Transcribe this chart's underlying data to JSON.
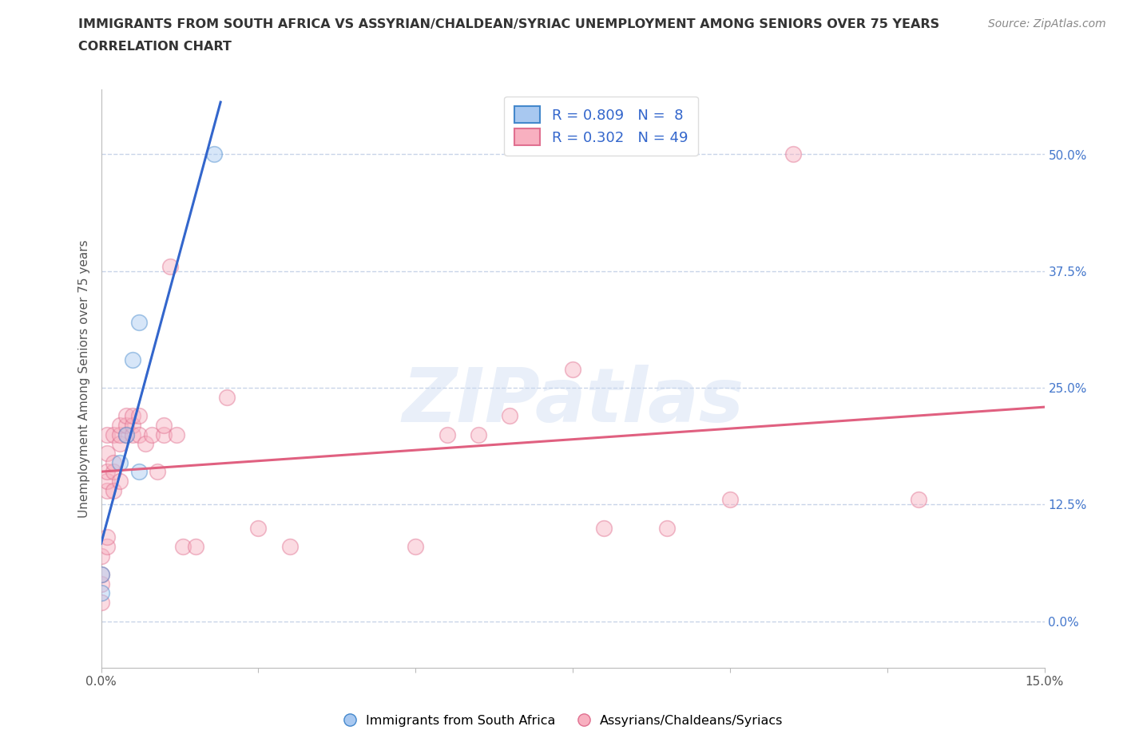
{
  "title": "IMMIGRANTS FROM SOUTH AFRICA VS ASSYRIAN/CHALDEAN/SYRIAC UNEMPLOYMENT AMONG SENIORS OVER 75 YEARS",
  "subtitle": "CORRELATION CHART",
  "source": "Source: ZipAtlas.com",
  "ylabel": "Unemployment Among Seniors over 75 years",
  "xlim": [
    0.0,
    0.15
  ],
  "ylim": [
    -0.05,
    0.57
  ],
  "xticks": [
    0.0,
    0.025,
    0.05,
    0.075,
    0.1,
    0.125,
    0.15
  ],
  "xtick_labels": [
    "0.0%",
    "",
    "",
    "",
    "",
    "",
    "15.0%"
  ],
  "ytick_values": [
    0.0,
    0.125,
    0.25,
    0.375,
    0.5
  ],
  "ytick_labels": [
    "0.0%",
    "12.5%",
    "25.0%",
    "37.5%",
    "50.0%"
  ],
  "watermark_text": "ZIPatlas",
  "legend_blue_R": "0.809",
  "legend_blue_N": " 8",
  "legend_pink_R": "0.302",
  "legend_pink_N": "49",
  "blue_fill": "#a8c8f0",
  "pink_fill": "#f8b0c0",
  "blue_edge": "#4488cc",
  "pink_edge": "#e07090",
  "blue_line": "#3366cc",
  "pink_line": "#e06080",
  "grid_color": "#c8d4e8",
  "blue_scatter": [
    [
      0.0,
      0.03
    ],
    [
      0.0,
      0.05
    ],
    [
      0.003,
      0.17
    ],
    [
      0.004,
      0.2
    ],
    [
      0.005,
      0.28
    ],
    [
      0.006,
      0.32
    ],
    [
      0.006,
      0.16
    ],
    [
      0.018,
      0.5
    ]
  ],
  "pink_scatter": [
    [
      0.0,
      0.02
    ],
    [
      0.0,
      0.04
    ],
    [
      0.0,
      0.05
    ],
    [
      0.0,
      0.07
    ],
    [
      0.001,
      0.08
    ],
    [
      0.001,
      0.09
    ],
    [
      0.001,
      0.14
    ],
    [
      0.001,
      0.15
    ],
    [
      0.001,
      0.16
    ],
    [
      0.001,
      0.18
    ],
    [
      0.001,
      0.2
    ],
    [
      0.002,
      0.14
    ],
    [
      0.002,
      0.16
    ],
    [
      0.002,
      0.17
    ],
    [
      0.002,
      0.2
    ],
    [
      0.003,
      0.15
    ],
    [
      0.003,
      0.19
    ],
    [
      0.003,
      0.2
    ],
    [
      0.003,
      0.21
    ],
    [
      0.004,
      0.2
    ],
    [
      0.004,
      0.21
    ],
    [
      0.004,
      0.22
    ],
    [
      0.005,
      0.2
    ],
    [
      0.005,
      0.21
    ],
    [
      0.005,
      0.22
    ],
    [
      0.006,
      0.2
    ],
    [
      0.006,
      0.22
    ],
    [
      0.007,
      0.19
    ],
    [
      0.008,
      0.2
    ],
    [
      0.009,
      0.16
    ],
    [
      0.01,
      0.2
    ],
    [
      0.01,
      0.21
    ],
    [
      0.011,
      0.38
    ],
    [
      0.012,
      0.2
    ],
    [
      0.013,
      0.08
    ],
    [
      0.015,
      0.08
    ],
    [
      0.02,
      0.24
    ],
    [
      0.025,
      0.1
    ],
    [
      0.03,
      0.08
    ],
    [
      0.05,
      0.08
    ],
    [
      0.055,
      0.2
    ],
    [
      0.06,
      0.2
    ],
    [
      0.065,
      0.22
    ],
    [
      0.075,
      0.27
    ],
    [
      0.08,
      0.1
    ],
    [
      0.09,
      0.1
    ],
    [
      0.1,
      0.13
    ],
    [
      0.11,
      0.5
    ],
    [
      0.13,
      0.13
    ]
  ],
  "title_fontsize": 11.5,
  "subtitle_fontsize": 11.5,
  "axis_label_fontsize": 11,
  "tick_fontsize": 11,
  "legend_fontsize": 13,
  "source_fontsize": 10,
  "scatter_size": 200,
  "scatter_alpha": 0.45,
  "scatter_linewidth": 1.2
}
